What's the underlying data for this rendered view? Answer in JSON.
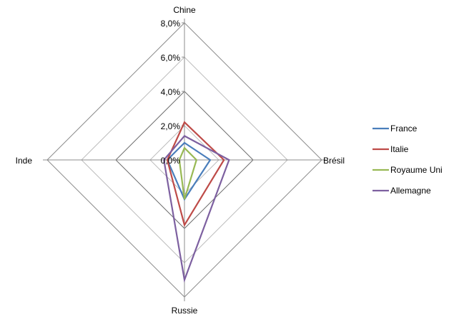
{
  "chart_data": {
    "type": "radar",
    "axes": [
      "Chine",
      "Brésil",
      "Russie",
      "Inde"
    ],
    "rlim": [
      0,
      8.0
    ],
    "ticks": [
      "0,0%",
      "2,0%",
      "4,0%",
      "6,0%",
      "8,0%"
    ],
    "tick_values": [
      0,
      2,
      4,
      6,
      8
    ],
    "grid": true,
    "legend_position": "right",
    "series": [
      {
        "name": "France",
        "color": "#4A7EBB",
        "values": [
          1.0,
          1.5,
          2.3,
          1.0
        ]
      },
      {
        "name": "Italie",
        "color": "#BE4B48",
        "values": [
          2.2,
          2.3,
          3.8,
          1.0
        ]
      },
      {
        "name": "Royaume Uni",
        "color": "#98B954",
        "values": [
          0.7,
          0.7,
          2.3,
          0.3
        ]
      },
      {
        "name": "Allemagne",
        "color": "#7D60A0",
        "values": [
          1.4,
          2.6,
          7.0,
          1.2
        ]
      }
    ]
  }
}
